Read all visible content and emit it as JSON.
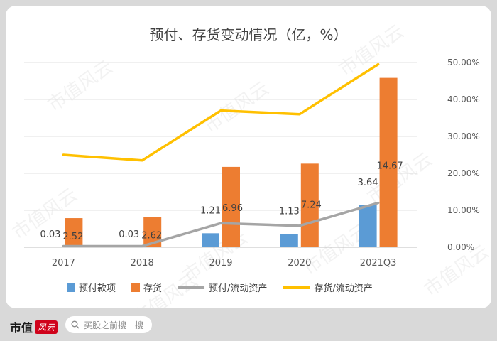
{
  "chart_data": {
    "type": "bar",
    "title": "预付、存货变动情况（亿，%）",
    "categories": [
      "2017",
      "2018",
      "2019",
      "2020",
      "2021Q3"
    ],
    "bar_series": [
      {
        "name": "预付款项",
        "color": "#5b9bd5",
        "values": [
          0.03,
          0.03,
          1.21,
          1.13,
          3.64
        ],
        "labels": [
          "0.03",
          "0.03",
          "1.21",
          "1.13",
          "3.64"
        ]
      },
      {
        "name": "存货",
        "color": "#ed7d31",
        "values": [
          2.52,
          2.62,
          6.96,
          7.24,
          14.67
        ],
        "labels": [
          "2.52",
          "2.62",
          "6.96",
          "7.24",
          "14.67"
        ]
      }
    ],
    "line_series": [
      {
        "name": "预付/流动资产",
        "color": "#a5a5a5",
        "values": [
          0.3,
          0.3,
          6.5,
          5.8,
          12.0
        ]
      },
      {
        "name": "存货/流动资产",
        "color": "#ffc000",
        "values": [
          25.0,
          23.5,
          37.0,
          36.0,
          49.5
        ]
      }
    ],
    "left_axis": {
      "min": 0,
      "max": 16
    },
    "right_axis": {
      "min": 0,
      "max": 50,
      "ticks": [
        "0.00%",
        "10.00%",
        "20.00%",
        "30.00%",
        "40.00%",
        "50.00%"
      ]
    },
    "grid": true,
    "legend_position": "bottom"
  },
  "watermark": "市值风云",
  "footer": {
    "brand": "市值",
    "brand_logo": "风云",
    "search_placeholder": "买股之前搜一搜"
  }
}
